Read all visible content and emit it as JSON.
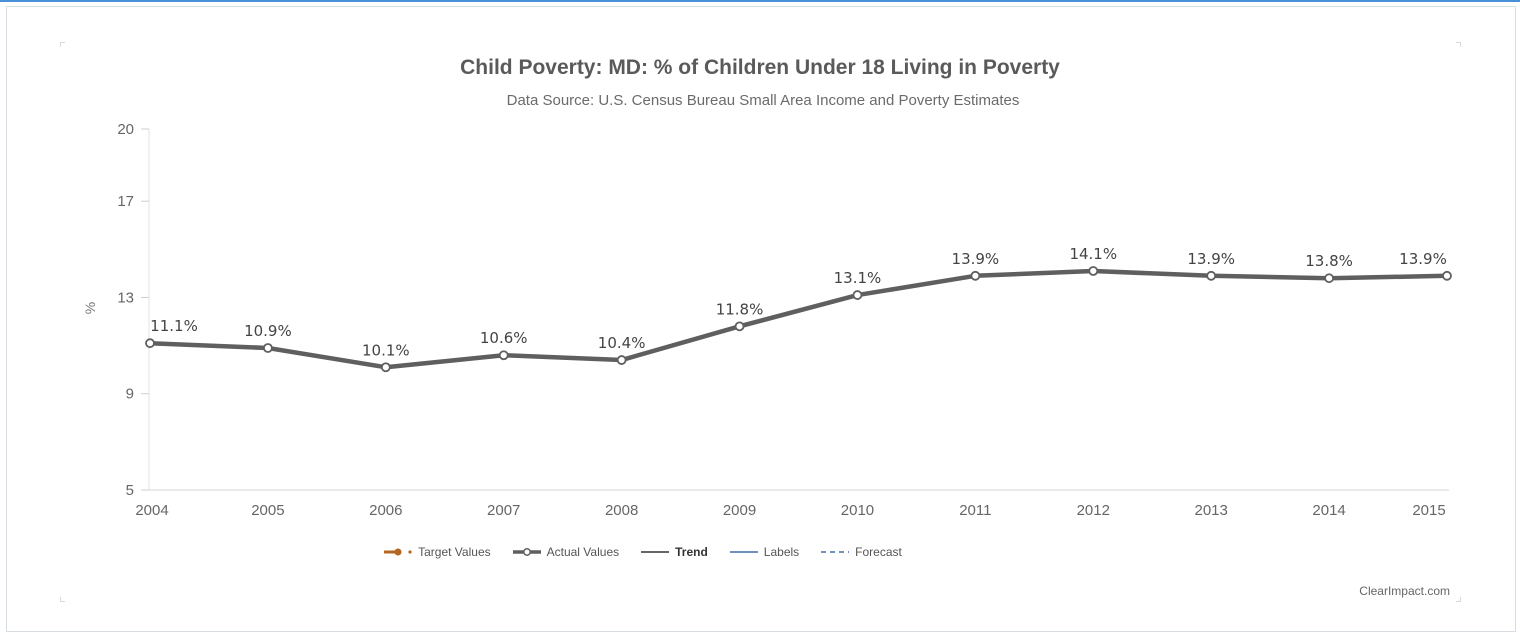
{
  "chart_data": {
    "type": "line",
    "title": "Child Poverty: MD: % of Children Under 18 Living in Poverty",
    "subtitle": "Data Source: U.S. Census Bureau Small Area Income and Poverty Estimates",
    "ylabel": "%",
    "xlabel": "",
    "ylim": [
      5,
      20
    ],
    "yticks": [
      5,
      9,
      13,
      17,
      20
    ],
    "categories": [
      "2004",
      "2005",
      "2006",
      "2007",
      "2008",
      "2009",
      "2010",
      "2011",
      "2012",
      "2013",
      "2014",
      "2015"
    ],
    "series": [
      {
        "name": "Actual Values",
        "values": [
          11.1,
          10.9,
          10.1,
          10.6,
          10.4,
          11.8,
          13.1,
          13.9,
          14.1,
          13.9,
          13.8,
          13.9
        ],
        "labels": [
          "11.1%",
          "10.9%",
          "10.1%",
          "10.6%",
          "10.4%",
          "11.8%",
          "13.1%",
          "13.9%",
          "14.1%",
          "13.9%",
          "13.8%",
          "13.9%"
        ],
        "color": "#5f5f5f"
      }
    ],
    "grid": false,
    "legend_position": "bottom",
    "legend": [
      {
        "name": "Target Values",
        "style": "target",
        "color": "#b5651d"
      },
      {
        "name": "Actual Values",
        "style": "actual",
        "color": "#5f5f5f"
      },
      {
        "name": "Trend",
        "style": "solid",
        "color": "#333333"
      },
      {
        "name": "Labels",
        "style": "solid",
        "color": "#3d6fa8"
      },
      {
        "name": "Forecast",
        "style": "dashed",
        "color": "#3d6fa8"
      }
    ]
  },
  "credit": "ClearImpact.com"
}
